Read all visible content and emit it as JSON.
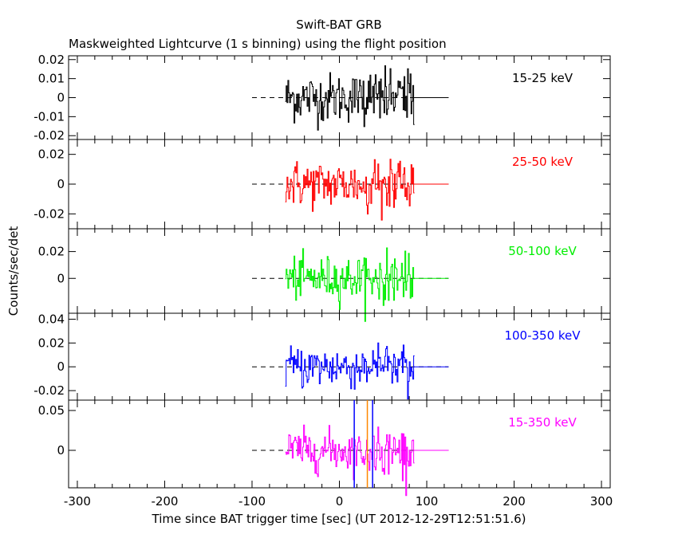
{
  "chart_data": {
    "type": "line",
    "title": "Swift-BAT GRB",
    "subtitle": "Maskweighted Lightcurve (1 s binning) using the flight position",
    "xlabel": "Time since BAT trigger time [sec] (UT 2012-12-29T12:51:51.6)",
    "ylabel": "Counts/sec/det",
    "xlim": [
      -310,
      310
    ],
    "x_ticks": [
      -300,
      -200,
      -100,
      0,
      100,
      200,
      300
    ],
    "grid": false,
    "zero_line": {
      "style": "dashed",
      "x_range": [
        -100,
        125
      ]
    },
    "data_time_range": [
      -62,
      85
    ],
    "vertical_markers": [
      {
        "x": 17,
        "color": "#0000ff"
      },
      {
        "x": 32,
        "color": "#ff8800"
      },
      {
        "x": 38,
        "color": "#0000ff"
      }
    ],
    "panels": [
      {
        "band": "15-25 keV",
        "color": "#000000",
        "ylim": [
          -0.022,
          0.022
        ],
        "y_ticks": [
          -0.02,
          -0.01,
          0,
          0.01,
          0.02
        ],
        "tick_labels": [
          "-0.02",
          "-0.01",
          "0",
          "0.01",
          "0.02"
        ],
        "noise_sigma": 0.0065,
        "max_excursion": 0.0215
      },
      {
        "band": "25-50 keV",
        "color": "#ff0000",
        "ylim": [
          -0.03,
          0.03
        ],
        "y_ticks": [
          -0.02,
          0,
          0.02
        ],
        "tick_labels": [
          "-0.02",
          "0",
          "0.02"
        ],
        "noise_sigma": 0.008,
        "max_excursion": 0.029
      },
      {
        "band": "50-100 keV",
        "color": "#00ee00",
        "ylim": [
          -0.026,
          0.037
        ],
        "y_ticks": [
          0,
          0.02
        ],
        "tick_labels": [
          "0",
          "0.02"
        ],
        "noise_sigma": 0.008,
        "max_excursion": 0.033
      },
      {
        "band": "100-350 keV",
        "color": "#0000ff",
        "ylim": [
          -0.028,
          0.045
        ],
        "y_ticks": [
          -0.02,
          0,
          0.02,
          0.04
        ],
        "tick_labels": [
          "-0.02",
          "0",
          "0.02",
          "0.04"
        ],
        "noise_sigma": 0.009,
        "max_excursion": 0.043
      },
      {
        "band": "15-350 keV",
        "color": "#ff00ff",
        "ylim": [
          -0.047,
          0.063
        ],
        "y_ticks": [
          0,
          0.05
        ],
        "tick_labels": [
          "0",
          "0.05"
        ],
        "noise_sigma": 0.013,
        "max_excursion": 0.06
      }
    ]
  }
}
